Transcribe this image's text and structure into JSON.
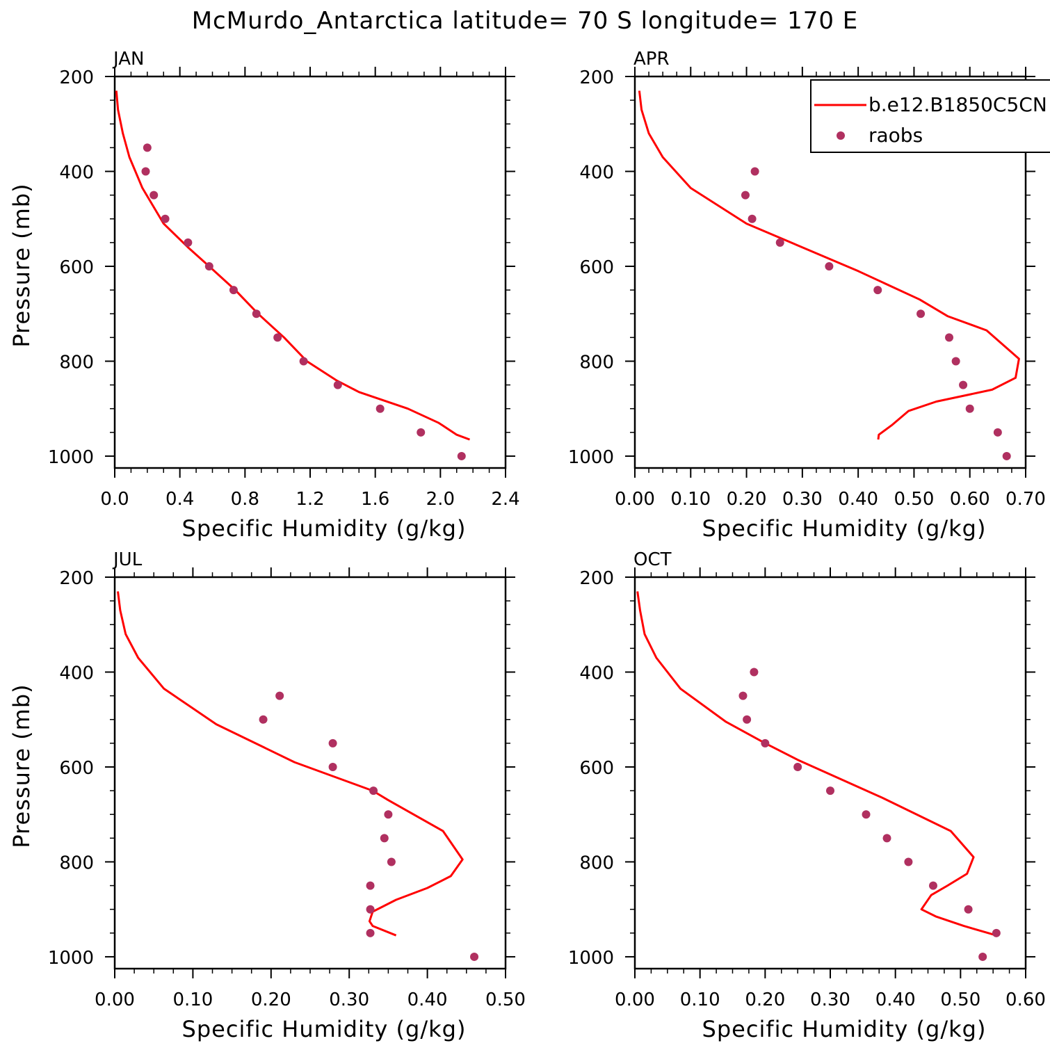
{
  "page": {
    "title": "McMurdo_Antarctica  latitude= 70 S longitude= 170 E"
  },
  "colors": {
    "model": "#ff0000",
    "obs": "#b03060"
  },
  "chart_data": [
    {
      "type": "line",
      "panel_label": "JAN",
      "xlabel": "Specific Humidity (g/kg)",
      "ylabel": "Pressure (mb)",
      "xlim": [
        0,
        2.4
      ],
      "ylim": [
        200,
        1025
      ],
      "yreverse": true,
      "xticks": [
        "0.0",
        "0.4",
        "0.8",
        "1.2",
        "1.6",
        "2.0",
        "2.4"
      ],
      "yticks": [
        "200",
        "400",
        "600",
        "800",
        "1000"
      ],
      "series": [
        {
          "name": "b.e12.B1850C5CN",
          "kind": "line",
          "x": [
            0.01,
            0.02,
            0.05,
            0.09,
            0.17,
            0.3,
            0.45,
            0.58,
            0.74,
            0.88,
            1.04,
            1.18,
            1.36,
            1.5,
            1.8,
            1.99,
            2.1,
            2.18
          ],
          "y": [
            230,
            270,
            320,
            370,
            435,
            510,
            560,
            600,
            650,
            700,
            750,
            800,
            840,
            865,
            900,
            930,
            955,
            965
          ]
        },
        {
          "name": "raobs",
          "kind": "scatter",
          "x": [
            0.2,
            0.19,
            0.24,
            0.31,
            0.45,
            0.58,
            0.73,
            0.87,
            1.0,
            1.16,
            1.37,
            1.63,
            1.88,
            2.13
          ],
          "y": [
            350,
            400,
            450,
            500,
            550,
            600,
            650,
            700,
            750,
            800,
            850,
            900,
            950,
            1000
          ]
        }
      ]
    },
    {
      "type": "line",
      "panel_label": "APR",
      "xlabel": "Specific Humidity (g/kg)",
      "ylabel": "",
      "xlim": [
        0,
        0.7
      ],
      "ylim": [
        200,
        1025
      ],
      "yreverse": true,
      "xticks": [
        "0.00",
        "0.10",
        "0.20",
        "0.30",
        "0.40",
        "0.50",
        "0.60",
        "0.70"
      ],
      "yticks": [
        "200",
        "400",
        "600",
        "800",
        "1000"
      ],
      "legend": {
        "position": "top-right",
        "entries": [
          "b.e12.B1850C5CN",
          "raobs"
        ]
      },
      "series": [
        {
          "name": "b.e12.B1850C5CN",
          "kind": "line",
          "x": [
            0.008,
            0.012,
            0.025,
            0.05,
            0.1,
            0.2,
            0.3,
            0.4,
            0.51,
            0.56,
            0.63,
            0.688,
            0.682,
            0.64,
            0.54,
            0.49,
            0.46,
            0.437,
            0.436
          ],
          "y": [
            230,
            270,
            320,
            370,
            435,
            510,
            560,
            610,
            670,
            705,
            735,
            795,
            835,
            860,
            885,
            905,
            935,
            955,
            965
          ]
        },
        {
          "name": "raobs",
          "kind": "scatter",
          "x": [
            0.215,
            0.198,
            0.21,
            0.26,
            0.348,
            0.435,
            0.512,
            0.563,
            0.575,
            0.588,
            0.6,
            0.65,
            0.666
          ],
          "y": [
            400,
            450,
            500,
            550,
            600,
            650,
            700,
            750,
            800,
            850,
            900,
            950,
            1000
          ]
        }
      ]
    },
    {
      "type": "line",
      "panel_label": "JUL",
      "xlabel": "Specific Humidity (g/kg)",
      "ylabel": "Pressure (mb)",
      "xlim": [
        0,
        0.5
      ],
      "ylim": [
        200,
        1025
      ],
      "yreverse": true,
      "xticks": [
        "0.00",
        "0.10",
        "0.20",
        "0.30",
        "0.40",
        "0.50"
      ],
      "yticks": [
        "200",
        "400",
        "600",
        "800",
        "1000"
      ],
      "series": [
        {
          "name": "b.e12.B1850C5CN",
          "kind": "line",
          "x": [
            0.004,
            0.007,
            0.014,
            0.03,
            0.063,
            0.13,
            0.23,
            0.33,
            0.35,
            0.42,
            0.445,
            0.43,
            0.4,
            0.36,
            0.33,
            0.326,
            0.33,
            0.36
          ],
          "y": [
            230,
            270,
            320,
            370,
            435,
            510,
            590,
            650,
            670,
            735,
            795,
            830,
            855,
            880,
            905,
            925,
            935,
            955
          ]
        },
        {
          "name": "raobs",
          "kind": "scatter",
          "x": [
            0.211,
            0.19,
            0.279,
            0.279,
            0.331,
            0.35,
            0.345,
            0.354,
            0.327,
            0.327,
            0.327,
            0.46
          ],
          "y": [
            450,
            500,
            550,
            600,
            650,
            700,
            750,
            800,
            850,
            900,
            950,
            1000
          ]
        }
      ]
    },
    {
      "type": "line",
      "panel_label": "OCT",
      "xlabel": "Specific Humidity (g/kg)",
      "ylabel": "",
      "xlim": [
        0,
        0.6
      ],
      "ylim": [
        200,
        1025
      ],
      "yreverse": true,
      "xticks": [
        "0.00",
        "0.10",
        "0.20",
        "0.30",
        "0.40",
        "0.50",
        "0.60"
      ],
      "yticks": [
        "200",
        "400",
        "600",
        "800",
        "1000"
      ],
      "series": [
        {
          "name": "b.e12.B1850C5CN",
          "kind": "line",
          "x": [
            0.004,
            0.008,
            0.015,
            0.033,
            0.07,
            0.14,
            0.2,
            0.25,
            0.38,
            0.485,
            0.52,
            0.51,
            0.48,
            0.455,
            0.44,
            0.462,
            0.505,
            0.555
          ],
          "y": [
            230,
            270,
            320,
            370,
            435,
            505,
            550,
            585,
            665,
            735,
            790,
            825,
            850,
            870,
            900,
            915,
            935,
            955
          ]
        },
        {
          "name": "raobs",
          "kind": "scatter",
          "x": [
            0.183,
            0.166,
            0.172,
            0.2,
            0.25,
            0.3,
            0.355,
            0.387,
            0.42,
            0.458,
            0.512,
            0.555,
            0.534
          ],
          "y": [
            400,
            450,
            500,
            550,
            600,
            650,
            700,
            750,
            800,
            850,
            900,
            950,
            1000
          ]
        }
      ]
    }
  ]
}
